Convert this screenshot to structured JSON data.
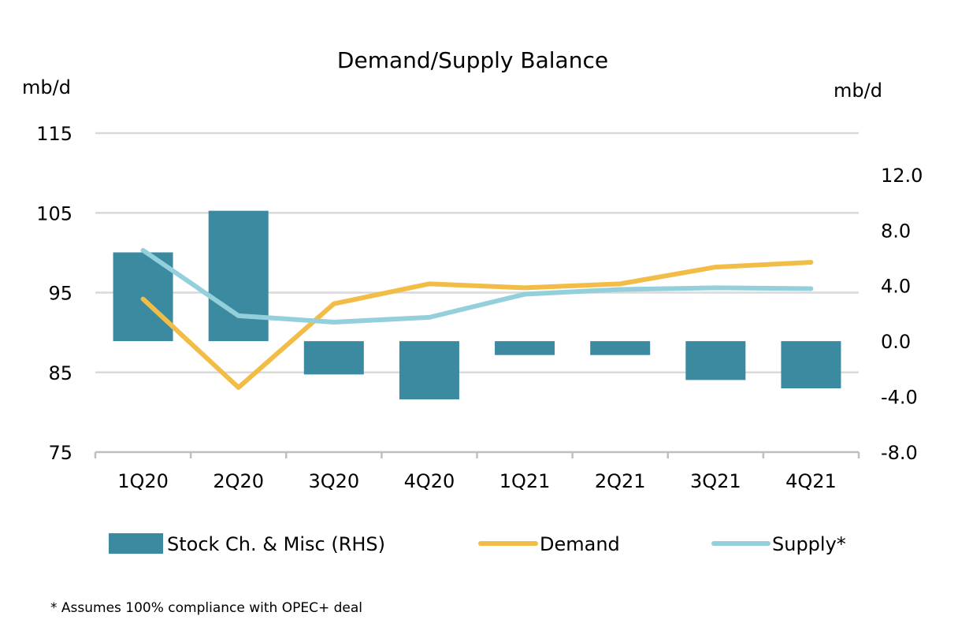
{
  "chart_data": {
    "type": "bar+line",
    "title": "Demand/Supply Balance",
    "left_axis_label": "mb/d",
    "right_axis_label": "mb/d",
    "categories": [
      "1Q20",
      "2Q20",
      "3Q20",
      "4Q20",
      "1Q21",
      "2Q21",
      "3Q21",
      "4Q21"
    ],
    "left_axis": {
      "min": 75,
      "max": 115,
      "ticks": [
        "75",
        "85",
        "95",
        "105",
        "115"
      ],
      "tick_values": [
        75,
        85,
        95,
        105,
        115
      ]
    },
    "right_axis": {
      "min": -8.0,
      "max": 15.0,
      "ticks": [
        "-8.0",
        "-4.0",
        "0.0",
        "4.0",
        "8.0",
        "12.0"
      ],
      "tick_values": [
        -8,
        -4,
        0,
        4,
        8,
        12
      ]
    },
    "grid": "horizontal",
    "legend_position": "bottom",
    "series": [
      {
        "name": "Stock Ch. & Misc (RHS)",
        "type": "bar",
        "axis": "right",
        "color": "#3b8aa0",
        "values": [
          6.4,
          9.4,
          -2.4,
          -4.2,
          -1.0,
          -1.0,
          -2.8,
          -3.4
        ]
      },
      {
        "name": "Demand",
        "type": "line",
        "axis": "left",
        "color": "#f2bd46",
        "values": [
          94.2,
          83.1,
          93.6,
          96.1,
          95.6,
          96.1,
          98.2,
          98.8
        ]
      },
      {
        "name": "Supply*",
        "type": "line",
        "axis": "left",
        "color": "#94d0dc",
        "values": [
          100.3,
          92.1,
          91.3,
          91.9,
          94.8,
          95.4,
          95.6,
          95.5
        ]
      }
    ]
  },
  "footnote": "* Assumes 100% compliance with OPEC+ deal"
}
